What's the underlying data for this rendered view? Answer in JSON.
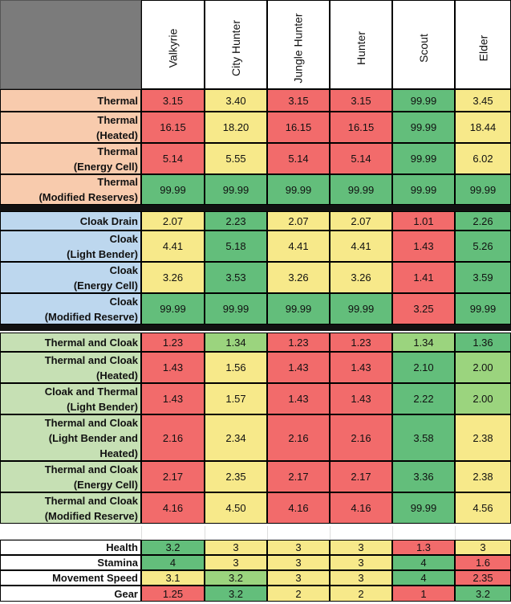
{
  "colors": {
    "red": "#f26b6b",
    "yellow": "#f7e98a",
    "green": "#63be7b",
    "light_green": "#9bd47e",
    "thermal_label": "#f8cbad",
    "cloak_label": "#bdd7ee",
    "combo_label": "#c6e0b4"
  },
  "columns": [
    "Valkyrie",
    "City Hunter",
    "Jungle Hunter",
    "Hunter",
    "Scout",
    "Elder"
  ],
  "sections": [
    {
      "name": "thermal",
      "label_color": "#f8cbad",
      "rows": [
        {
          "label": "Thermal",
          "values": [
            "3.15",
            "3.40",
            "3.15",
            "3.15",
            "99.99",
            "3.45"
          ],
          "colors": [
            "red",
            "yellow",
            "red",
            "red",
            "green",
            "yellow"
          ]
        },
        {
          "label": "Thermal\n(Heated)",
          "values": [
            "16.15",
            "18.20",
            "16.15",
            "16.15",
            "99.99",
            "18.44"
          ],
          "colors": [
            "red",
            "yellow",
            "red",
            "red",
            "green",
            "yellow"
          ]
        },
        {
          "label": "Thermal\n(Energy Cell)",
          "values": [
            "5.14",
            "5.55",
            "5.14",
            "5.14",
            "99.99",
            "6.02"
          ],
          "colors": [
            "red",
            "yellow",
            "red",
            "red",
            "green",
            "yellow"
          ]
        },
        {
          "label": "Thermal\n(Modified Reserves)",
          "values": [
            "99.99",
            "99.99",
            "99.99",
            "99.99",
            "99.99",
            "99.99"
          ],
          "colors": [
            "green",
            "green",
            "green",
            "green",
            "green",
            "green"
          ]
        }
      ]
    },
    {
      "name": "cloak",
      "label_color": "#bdd7ee",
      "rows": [
        {
          "label": "Cloak Drain",
          "values": [
            "2.07",
            "2.23",
            "2.07",
            "2.07",
            "1.01",
            "2.26"
          ],
          "colors": [
            "yellow",
            "green",
            "yellow",
            "yellow",
            "red",
            "green"
          ]
        },
        {
          "label": "Cloak\n(Light Bender)",
          "values": [
            "4.41",
            "5.18",
            "4.41",
            "4.41",
            "1.43",
            "5.26"
          ],
          "colors": [
            "yellow",
            "green",
            "yellow",
            "yellow",
            "red",
            "green"
          ]
        },
        {
          "label": "Cloak\n(Energy Cell)",
          "values": [
            "3.26",
            "3.53",
            "3.26",
            "3.26",
            "1.41",
            "3.59"
          ],
          "colors": [
            "yellow",
            "green",
            "yellow",
            "yellow",
            "red",
            "green"
          ]
        },
        {
          "label": "Cloak\n(Modified Reserve)",
          "values": [
            "99.99",
            "99.99",
            "99.99",
            "99.99",
            "3.25",
            "99.99"
          ],
          "colors": [
            "green",
            "green",
            "green",
            "green",
            "red",
            "green"
          ]
        }
      ]
    },
    {
      "name": "combo",
      "label_color": "#c6e0b4",
      "rows": [
        {
          "label": "Thermal and Cloak",
          "values": [
            "1.23",
            "1.34",
            "1.23",
            "1.23",
            "1.34",
            "1.36"
          ],
          "colors": [
            "red",
            "light_green",
            "red",
            "red",
            "light_green",
            "green"
          ]
        },
        {
          "label": "Thermal and Cloak\n(Heated)",
          "values": [
            "1.43",
            "1.56",
            "1.43",
            "1.43",
            "2.10",
            "2.00"
          ],
          "colors": [
            "red",
            "yellow",
            "red",
            "red",
            "green",
            "light_green"
          ]
        },
        {
          "label": "Cloak and Thermal\n(Light Bender)",
          "values": [
            "1.43",
            "1.57",
            "1.43",
            "1.43",
            "2.22",
            "2.00"
          ],
          "colors": [
            "red",
            "yellow",
            "red",
            "red",
            "green",
            "light_green"
          ]
        },
        {
          "label": "Thermal and Cloak\n(Light Bender and\nHeated)",
          "values": [
            "2.16",
            "2.34",
            "2.16",
            "2.16",
            "3.58",
            "2.38"
          ],
          "colors": [
            "red",
            "yellow",
            "red",
            "red",
            "green",
            "yellow"
          ]
        },
        {
          "label": "Thermal and Cloak\n(Energy Cell)",
          "values": [
            "2.17",
            "2.35",
            "2.17",
            "2.17",
            "3.36",
            "2.38"
          ],
          "colors": [
            "red",
            "yellow",
            "red",
            "red",
            "green",
            "yellow"
          ]
        },
        {
          "label": "Thermal and Cloak\n(Modified Reserve)",
          "values": [
            "4.16",
            "4.50",
            "4.16",
            "4.16",
            "99.99",
            "4.56"
          ],
          "colors": [
            "red",
            "yellow",
            "red",
            "red",
            "green",
            "yellow"
          ]
        }
      ]
    }
  ],
  "stats": [
    {
      "label": "Health",
      "values": [
        "3.2",
        "3",
        "3",
        "3",
        "1.3",
        "3"
      ],
      "colors": [
        "green",
        "yellow",
        "yellow",
        "yellow",
        "red",
        "yellow"
      ]
    },
    {
      "label": "Stamina",
      "values": [
        "4",
        "3",
        "3",
        "3",
        "4",
        "1.6"
      ],
      "colors": [
        "green",
        "yellow",
        "yellow",
        "yellow",
        "green",
        "red"
      ]
    },
    {
      "label": "Movement Speed",
      "values": [
        "3.1",
        "3.2",
        "3",
        "3",
        "4",
        "2.35"
      ],
      "colors": [
        "yellow",
        "light_green",
        "yellow",
        "yellow",
        "green",
        "red"
      ]
    },
    {
      "label": "Gear",
      "values": [
        "1.25",
        "3.2",
        "2",
        "2",
        "1",
        "3.2"
      ],
      "colors": [
        "red",
        "green",
        "yellow",
        "yellow",
        "red",
        "green"
      ]
    }
  ]
}
